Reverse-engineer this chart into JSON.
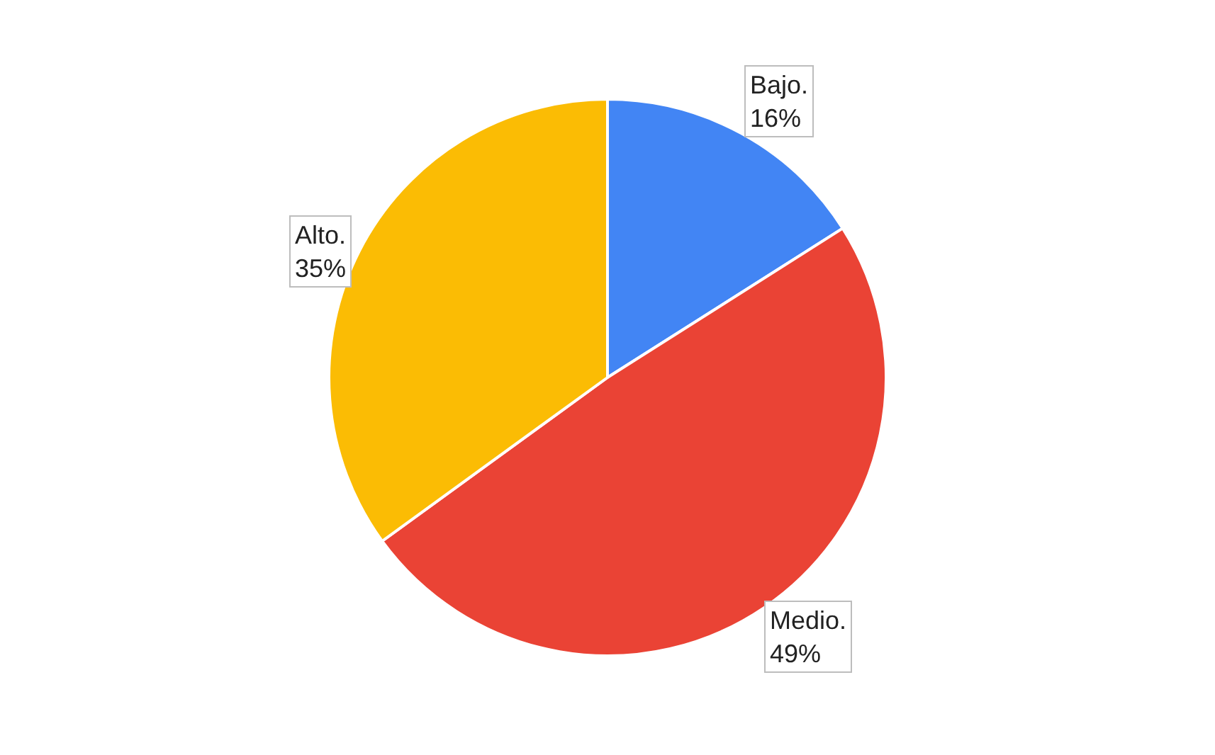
{
  "chart_data": {
    "type": "pie",
    "categories": [
      "Bajo.",
      "Medio.",
      "Alto."
    ],
    "values": [
      16,
      49,
      35
    ],
    "value_labels": [
      "16%",
      "49%",
      "35%"
    ],
    "colors": [
      "#4285f4",
      "#ea4335",
      "#fbbc04"
    ],
    "legend": false
  }
}
